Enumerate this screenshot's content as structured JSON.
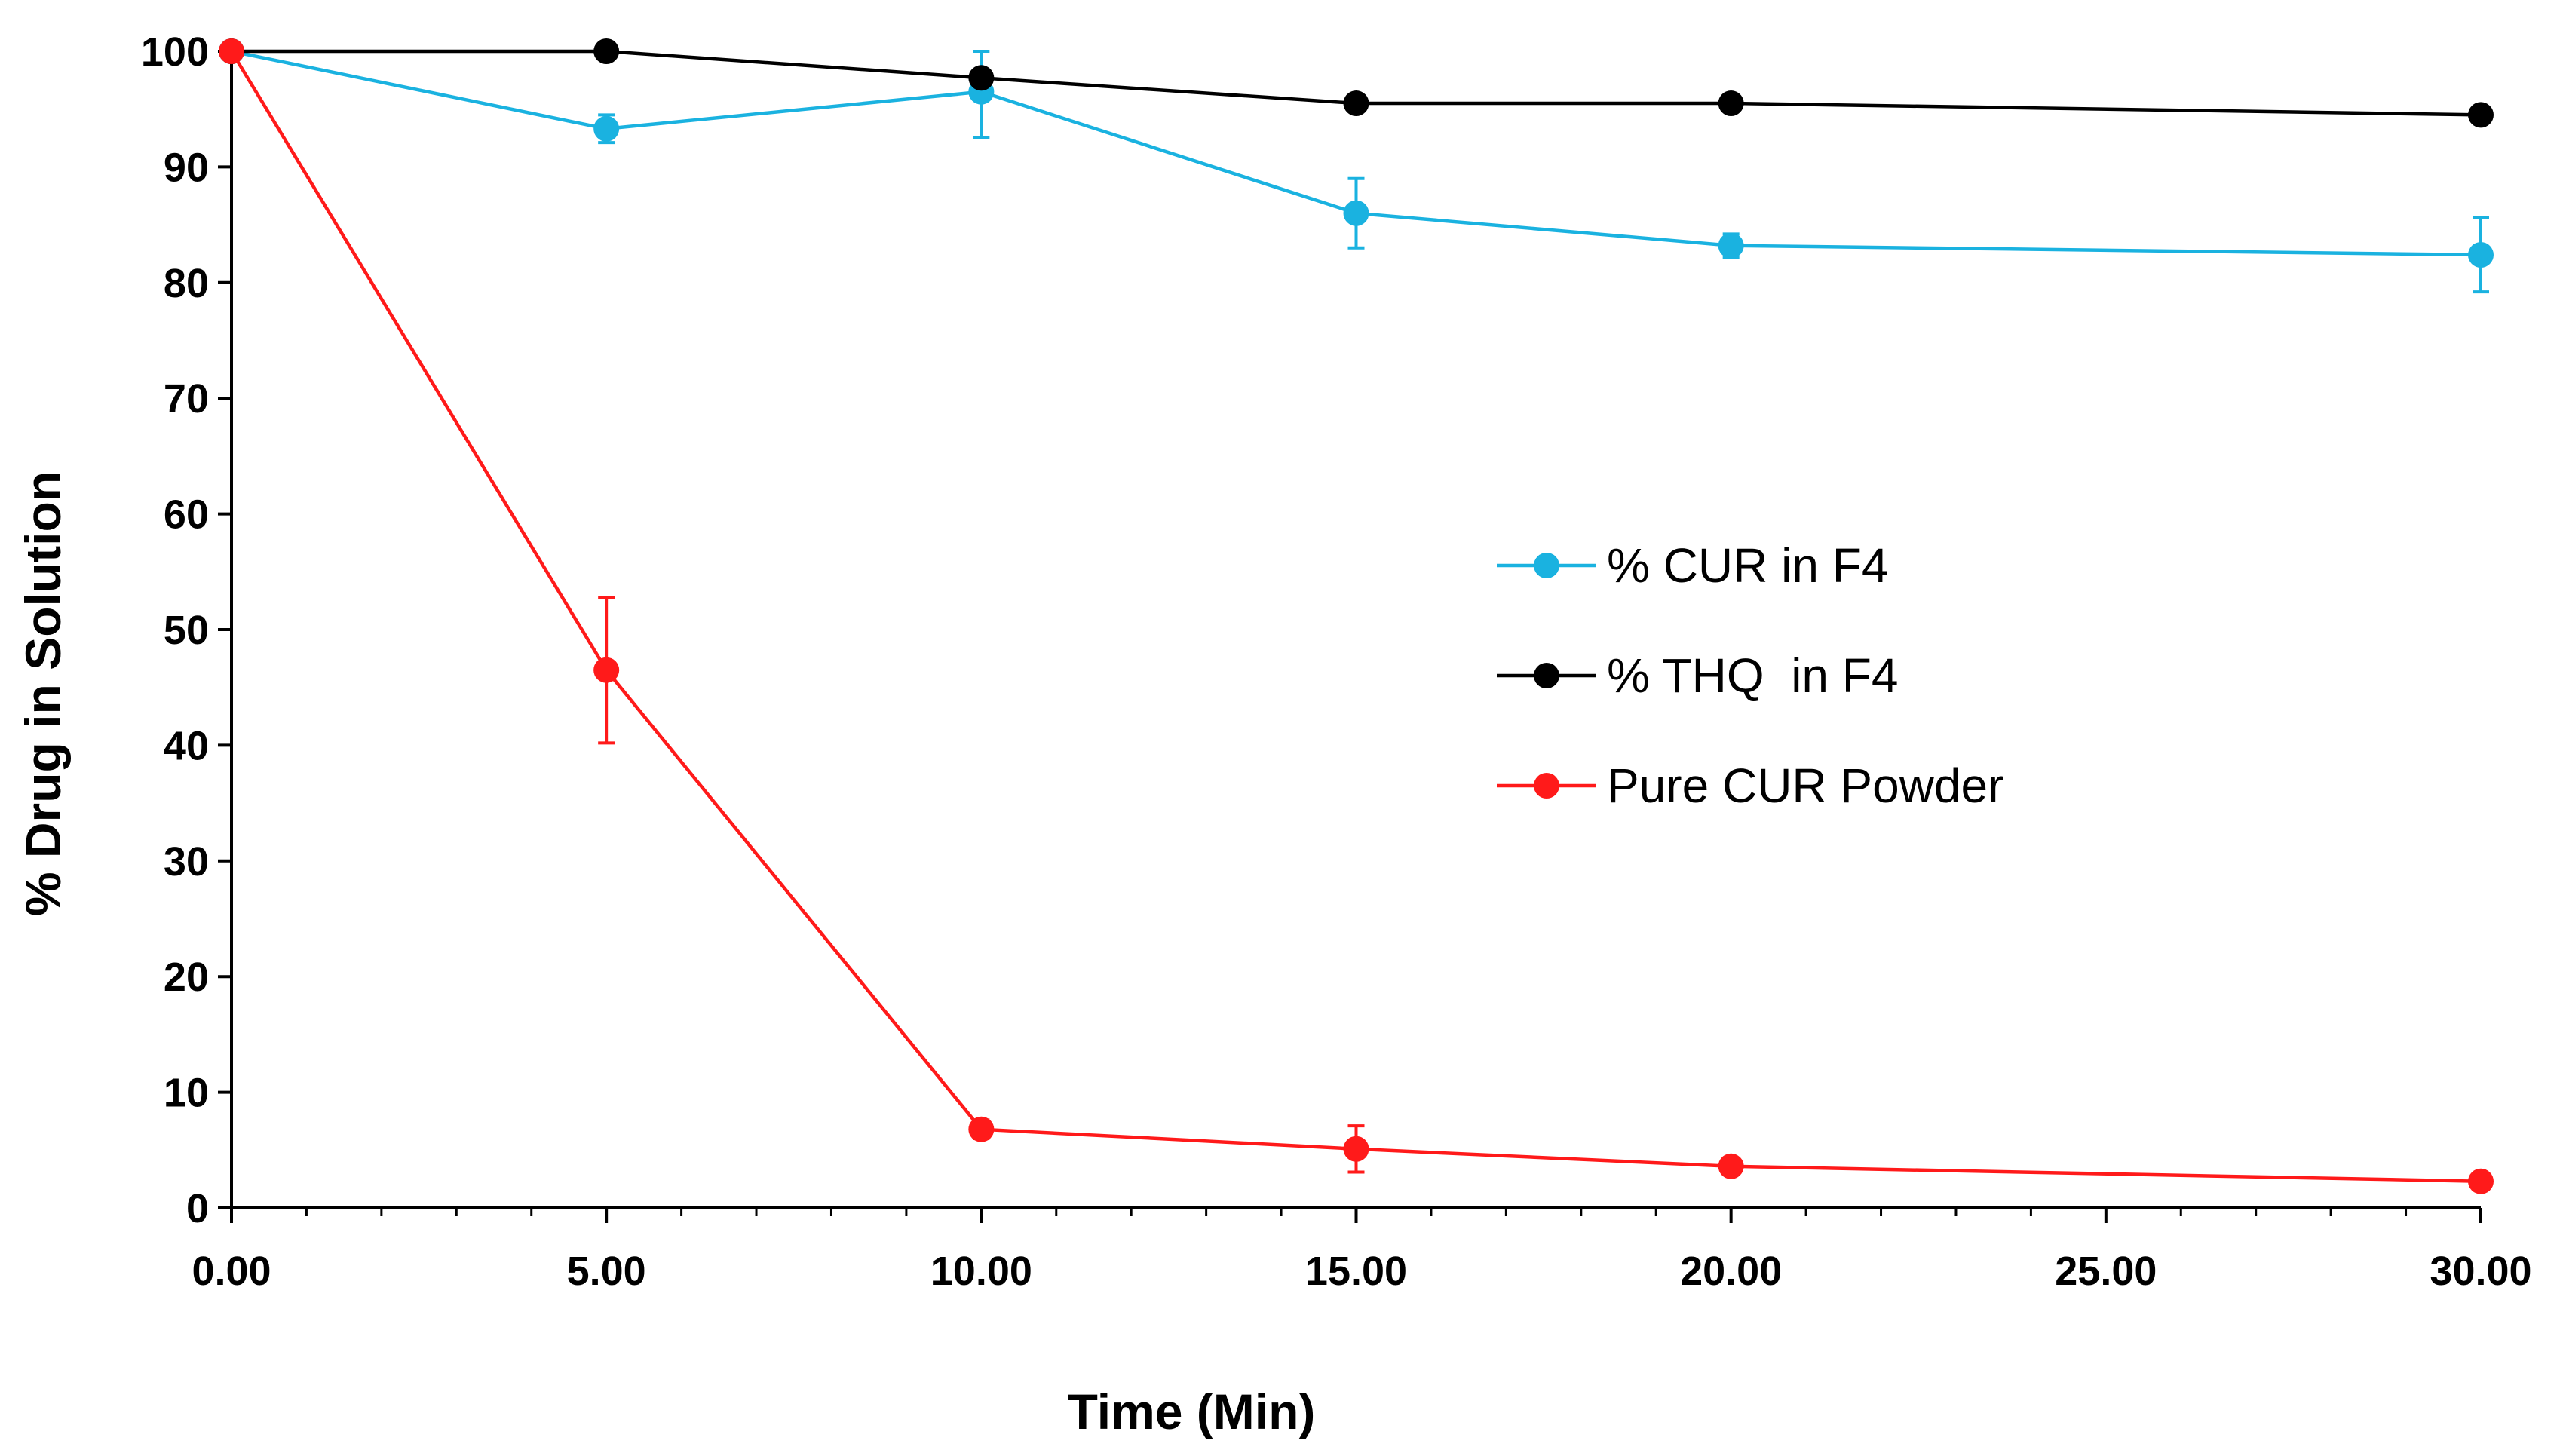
{
  "chart_data": {
    "type": "line",
    "title": "",
    "xlabel": "Time (Min)",
    "ylabel": "% Drug in Solution",
    "xlim": [
      0,
      30
    ],
    "ylim": [
      0,
      100
    ],
    "x_tick_labels": [
      "0.00",
      "5.00",
      "10.00",
      "15.00",
      "20.00",
      "25.00",
      "30.00"
    ],
    "y_tick_labels": [
      "0",
      "10",
      "20",
      "30",
      "40",
      "50",
      "60",
      "70",
      "80",
      "90",
      "100"
    ],
    "x": [
      0,
      5,
      10,
      15,
      20,
      30
    ],
    "legend_position": "center-right",
    "grid": false,
    "series": [
      {
        "name": "% CUR in F4",
        "color": "#1ab2e0",
        "values": [
          100,
          93.3,
          96.5,
          86.0,
          83.2,
          82.4
        ],
        "errors": [
          0,
          1.2,
          4.0,
          3.0,
          1.0,
          3.2
        ]
      },
      {
        "name": "% THQ  in F4",
        "color": "#000000",
        "values": [
          100,
          100,
          97.7,
          95.5,
          95.5,
          94.5
        ],
        "errors": [
          0,
          0.5,
          0.5,
          0.5,
          0.5,
          0.5
        ]
      },
      {
        "name": "Pure CUR Powder",
        "color": "#ff1a1a",
        "values": [
          100,
          46.5,
          6.8,
          5.1,
          3.6,
          2.3
        ],
        "errors": [
          0,
          6.3,
          0.8,
          2.0,
          0.5,
          0.3
        ]
      }
    ]
  }
}
